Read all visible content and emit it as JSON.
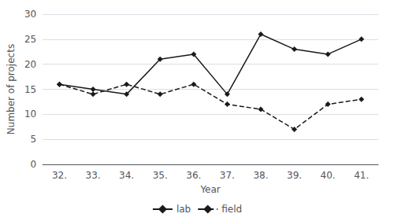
{
  "chart_data": {
    "type": "line",
    "categories": [
      "32.",
      "33.",
      "34.",
      "35.",
      "36.",
      "37.",
      "38.",
      "39.",
      "40.",
      "41."
    ],
    "series": [
      {
        "name": "lab",
        "color": "#1a1a1a",
        "values": [
          16,
          15,
          14,
          21,
          22,
          14,
          26,
          23,
          22,
          25
        ],
        "line_style": "solid",
        "marker": "diamond"
      },
      {
        "name": "field",
        "color": "#1a1a1a",
        "values": [
          16,
          14,
          16,
          14,
          16,
          12,
          11,
          7,
          12,
          13
        ],
        "line_style": "dashed",
        "marker": "diamond"
      }
    ],
    "xlabel": "Year",
    "ylabel": "Number of projects",
    "ylim": [
      0,
      30
    ],
    "yticks": [
      0,
      5,
      10,
      15,
      20,
      25,
      30
    ],
    "grid": true,
    "legend": "bottom"
  }
}
